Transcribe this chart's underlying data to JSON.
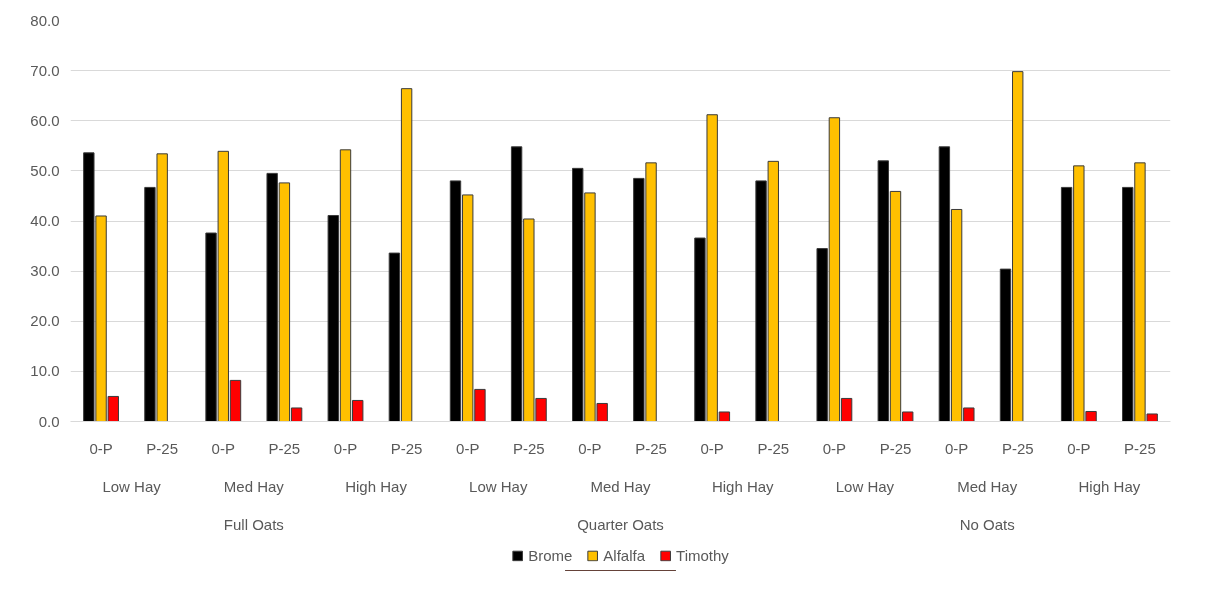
{
  "chart_data": {
    "type": "bar",
    "categories": [
      "0-P",
      "P-25",
      "0-P",
      "P-25",
      "0-P",
      "P-25",
      "0-P",
      "P-25",
      "0-P",
      "P-25",
      "0-P",
      "P-25",
      "0-P",
      "P-25",
      "0-P",
      "P-25",
      "0-P",
      "P-25"
    ],
    "annotations": [
      "Low Hay",
      "Med Hay",
      "High Hay",
      "Low Hay",
      "Med Hay",
      "High Hay",
      "Low Hay",
      "Med Hay",
      "High Hay",
      "Full Oats",
      "Quarter Oats",
      "No Oats"
    ],
    "series": [
      {
        "name": "Brome",
        "color": "#000000",
        "values": [
          53.6,
          46.7,
          37.6,
          49.5,
          41.1,
          33.6,
          48.0,
          54.8,
          50.5,
          48.5,
          36.6,
          48.0,
          34.5,
          52.0,
          54.8,
          30.4,
          46.7,
          46.7
        ]
      },
      {
        "name": "Alfalfa",
        "color": "#ffc000",
        "values": [
          41.0,
          53.4,
          53.9,
          47.6,
          54.2,
          66.4,
          45.2,
          40.4,
          45.6,
          51.6,
          61.2,
          51.9,
          60.6,
          45.9,
          42.3,
          69.8,
          51.0,
          51.6
        ]
      },
      {
        "name": "Timothy",
        "color": "#ff0000",
        "values": [
          5.0,
          null,
          8.2,
          2.7,
          4.2,
          null,
          6.4,
          4.6,
          3.6,
          null,
          1.9,
          null,
          4.6,
          1.9,
          2.7,
          null,
          2.0,
          1.5
        ]
      }
    ],
    "ylim": [
      0,
      80
    ],
    "yticks": [
      {
        "value": 0,
        "label": "0.0"
      },
      {
        "value": 10,
        "label": "10.0"
      },
      {
        "value": 20,
        "label": "20.0"
      },
      {
        "value": 30,
        "label": "30.0"
      },
      {
        "value": 40,
        "label": "40.0"
      },
      {
        "value": 50,
        "label": "50.0"
      },
      {
        "value": 60,
        "label": "60.0"
      },
      {
        "value": 70,
        "label": "70.0"
      },
      {
        "value": 80,
        "label": "80.0"
      }
    ],
    "grid": "y",
    "legend": "bottom"
  }
}
